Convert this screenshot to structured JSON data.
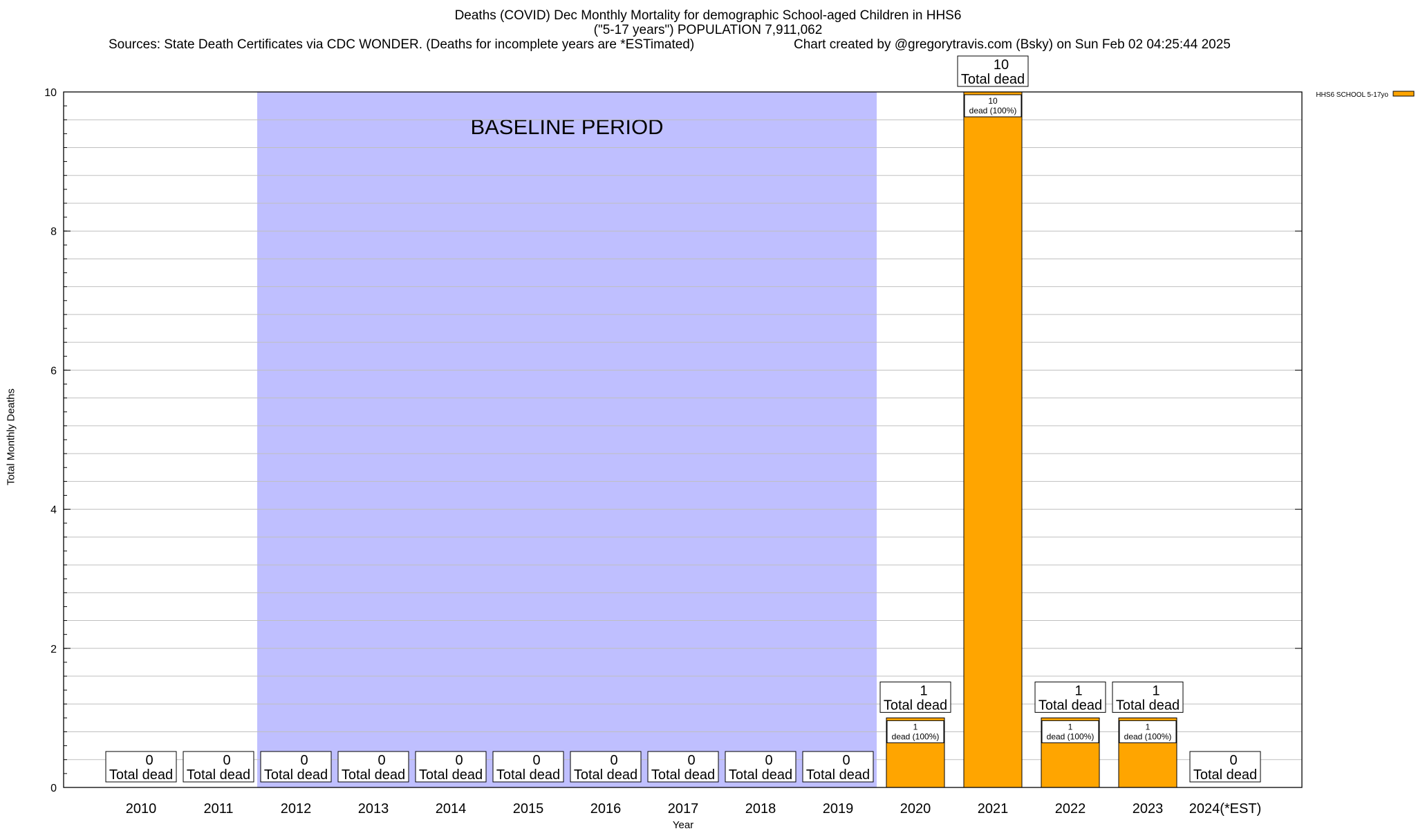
{
  "title": {
    "line1": "Deaths (COVID) Dec Monthly Mortality for demographic School-aged Children in HHS6",
    "line2": "(\"5-17 years\") POPULATION 7,911,062",
    "sources": "Sources: State Death Certificates via CDC WONDER. (Deaths for incomplete years are *ESTimated)",
    "credit": "Chart created by @gregorytravis.com (Bsky) on Sun Feb 02 04:25:44 2025"
  },
  "colors": {
    "bar": "#FFA500",
    "baseline_band": "#BFBFFF",
    "grid": "#BFBFBF"
  },
  "chart_data": {
    "type": "bar",
    "title": "Deaths (COVID) Dec Monthly Mortality for demographic School-aged Children in HHS6",
    "xlabel": "Year",
    "ylabel": "Total Monthly Deaths",
    "ylim": [
      0,
      10
    ],
    "y_ticks": [
      "0",
      "2",
      "4",
      "6",
      "8",
      "10"
    ],
    "grid": true,
    "legend_position": "top-right",
    "categories": [
      "2010",
      "2011",
      "2012",
      "2013",
      "2014",
      "2015",
      "2016",
      "2017",
      "2018",
      "2019",
      "2020",
      "2021",
      "2022",
      "2023",
      "2024(*EST)"
    ],
    "series": [
      {
        "name": "HHS6 SCHOOL 5-17yo",
        "values": [
          0,
          0,
          0,
          0,
          0,
          0,
          0,
          0,
          0,
          0,
          1,
          10,
          1,
          1,
          0
        ]
      }
    ],
    "total_labels": [
      "0",
      "0",
      "0",
      "0",
      "0",
      "0",
      "0",
      "0",
      "0",
      "0",
      "1",
      "10",
      "1",
      "1",
      "0"
    ],
    "total_label_suffix": "Total dead",
    "bar_labels": [
      "",
      "",
      "",
      "",
      "",
      "",
      "",
      "",
      "",
      "",
      "1\ndead (100%)",
      "10\ndead (100%)",
      "1\ndead (100%)",
      "1\ndead (100%)",
      ""
    ],
    "baseline": {
      "label": "BASELINE PERIOD",
      "from": "2012",
      "to": "2019"
    }
  }
}
